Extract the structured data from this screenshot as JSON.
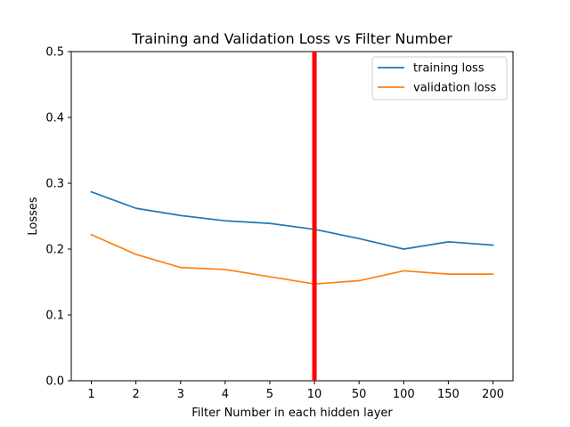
{
  "chart_data": {
    "type": "line",
    "title": "Training and Validation Loss vs Filter Number",
    "xlabel": "Filter Number in each hidden layer",
    "ylabel": "Losses",
    "categories": [
      "1",
      "2",
      "3",
      "4",
      "5",
      "10",
      "50",
      "100",
      "150",
      "200"
    ],
    "ylim": [
      0,
      0.5
    ],
    "yticks": [
      "0.0",
      "0.1",
      "0.2",
      "0.3",
      "0.4",
      "0.5"
    ],
    "ytick_values": [
      0.0,
      0.1,
      0.2,
      0.3,
      0.4,
      0.5
    ],
    "grid": false,
    "legend_position": "top-right",
    "series": [
      {
        "name": "training loss",
        "color": "#1f77b4",
        "values": [
          0.287,
          0.262,
          0.251,
          0.243,
          0.239,
          0.23,
          0.216,
          0.2,
          0.211,
          0.206
        ]
      },
      {
        "name": "validation loss",
        "color": "#ff7f0e",
        "values": [
          0.222,
          0.192,
          0.172,
          0.169,
          0.158,
          0.147,
          0.152,
          0.167,
          0.162,
          0.162
        ]
      }
    ],
    "annotations": [
      {
        "type": "vertical-line",
        "x_category": "10",
        "color": "#ff0000"
      }
    ]
  }
}
